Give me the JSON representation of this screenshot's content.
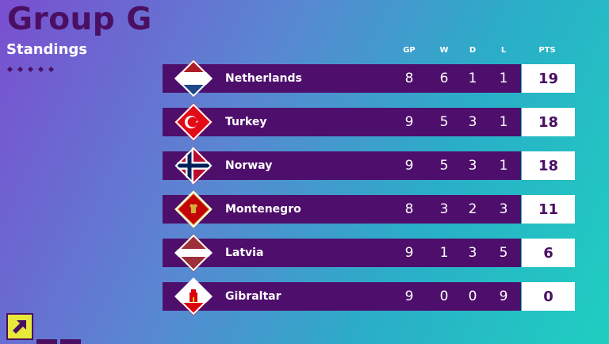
{
  "header": {
    "title": "Group G",
    "subtitle": "Standings"
  },
  "columns": {
    "gp": "GP",
    "w": "W",
    "d": "D",
    "l": "L",
    "pts": "PTS"
  },
  "standings": [
    {
      "team": "Netherlands",
      "gp": "8",
      "w": "6",
      "d": "1",
      "l": "1",
      "pts": "19",
      "flag": "netherlands-flag-icon"
    },
    {
      "team": "Turkey",
      "gp": "9",
      "w": "5",
      "d": "3",
      "l": "1",
      "pts": "18",
      "flag": "turkey-flag-icon"
    },
    {
      "team": "Norway",
      "gp": "9",
      "w": "5",
      "d": "3",
      "l": "1",
      "pts": "18",
      "flag": "norway-flag-icon"
    },
    {
      "team": "Montenegro",
      "gp": "8",
      "w": "3",
      "d": "2",
      "l": "3",
      "pts": "11",
      "flag": "montenegro-flag-icon"
    },
    {
      "team": "Latvia",
      "gp": "9",
      "w": "1",
      "d": "3",
      "l": "5",
      "pts": "6",
      "flag": "latvia-flag-icon"
    },
    {
      "team": "Gibraltar",
      "gp": "9",
      "w": "0",
      "d": "0",
      "l": "9",
      "pts": "0",
      "flag": "gibraltar-flag-icon"
    }
  ],
  "colors": {
    "primary": "#4e0e6b",
    "background_start": "#7a4fd0",
    "background_end": "#1fcfc0",
    "accent": "#e8e83a"
  },
  "icons": {
    "corner": "arrow-up-right-icon"
  }
}
